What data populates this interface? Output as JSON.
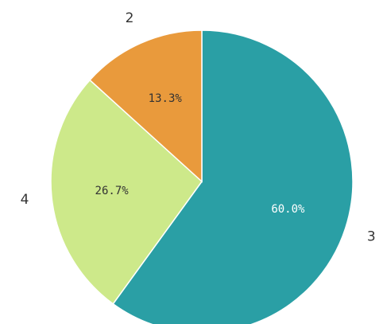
{
  "chart_data": {
    "type": "pie",
    "categories": [
      "3",
      "4",
      "2"
    ],
    "values": [
      60.0,
      26.7,
      13.3
    ],
    "value_labels": [
      "60.0%",
      "26.7%",
      "13.3%"
    ],
    "colors": [
      "#2a9fa5",
      "#cde98a",
      "#e99a3c"
    ],
    "label_colors": [
      "#ffffff",
      "#333333",
      "#333333"
    ]
  }
}
